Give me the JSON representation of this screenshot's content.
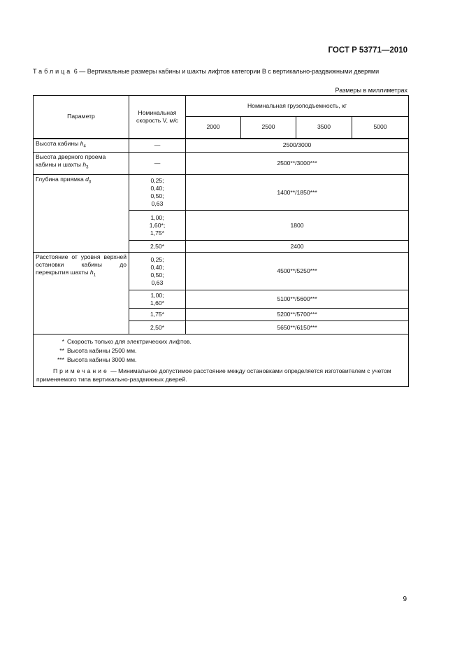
{
  "header": {
    "doc_id": "ГОСТ Р 53771—2010"
  },
  "caption": {
    "label": "Таблица",
    "text": " 6 — Вертикальные размеры кабины и шахты лифтов категории В с вертикально-раздвижными дверями"
  },
  "units": "Размеры в миллиметрах",
  "table": {
    "col_param": "Параметр",
    "col_speed": "Номинальная скорость V, м/с",
    "col_load": "Номинальная грузоподъемность, кг",
    "loads": [
      "2000",
      "2500",
      "3500",
      "5000"
    ],
    "rows": [
      {
        "param": "Высота кабины",
        "sym": "h",
        "sub": "4",
        "speed": "—",
        "value": "2500/3000"
      },
      {
        "param": "Высота дверного проема кабины и шахты",
        "sym": "h",
        "sub": "3",
        "speed": "—",
        "value": "2500**/3000***"
      },
      {
        "param": "Глубина приямка",
        "sym": "d",
        "sub": "3",
        "speed": "0,25; 0,40; 0,50; 0,63",
        "value": "1400**/1850***"
      },
      {
        "speed": "1,00; 1,60*; 1,75*",
        "value": "1800"
      },
      {
        "speed": "2,50*",
        "value": "2400"
      },
      {
        "param": "Расстояние от уровня верхней остановки кабины до перекрытия шахты",
        "sym": "h",
        "sub": "1",
        "speed": "0,25; 0,40; 0,50; 0,63",
        "value": "4500**/5250***"
      },
      {
        "speed": "1,00; 1,60*",
        "value": "5100**/5600***"
      },
      {
        "speed": "1,75*",
        "value": "5200**/5700***"
      },
      {
        "speed": "2,50*",
        "value": "5650**/6150***"
      }
    ],
    "footnotes": [
      {
        "mark": "*",
        "text": "Скорость только для электрических лифтов."
      },
      {
        "mark": "**",
        "text": "Высота кабины 2500 мм."
      },
      {
        "mark": "***",
        "text": "Высота кабины 3000 мм."
      }
    ],
    "note_label": "Примечание",
    "note_text": " — Минимальное допустимое расстояние между остановками определяется изготовителем с учетом применяемого типа вертикально-раздвижных дверей."
  },
  "page_number": "9"
}
